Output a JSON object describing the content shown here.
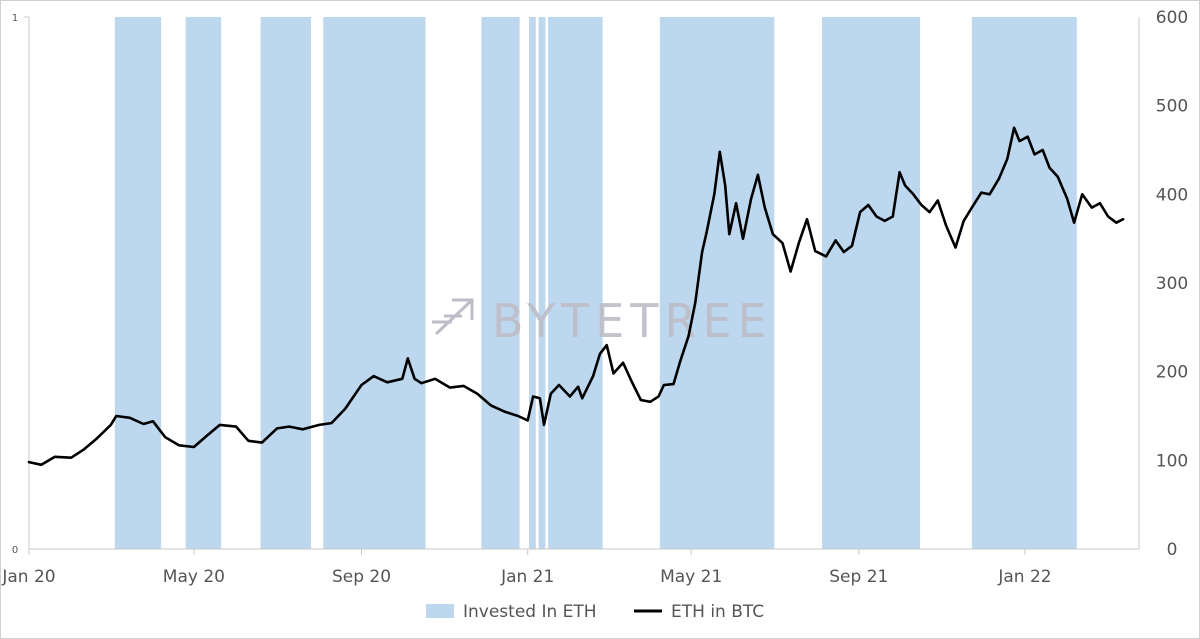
{
  "chart_data": {
    "type": "line",
    "watermark": "BYTETREE",
    "x_axis": {
      "tick_labels": [
        "Jan 20",
        "May 20",
        "Sep 20",
        "Jan 21",
        "May 21",
        "Sep 21",
        "Jan 22"
      ],
      "tick_dates": [
        "2020-01-01",
        "2020-05-01",
        "2020-09-01",
        "2021-01-01",
        "2021-05-01",
        "2021-09-01",
        "2022-01-01"
      ],
      "range": [
        "2020-01-01",
        "2022-03-15"
      ]
    },
    "y_axis_left": {
      "tick_labels": [
        "0",
        "1"
      ],
      "range": [
        0,
        1
      ]
    },
    "y_axis_right": {
      "tick_labels": [
        "0",
        "100",
        "200",
        "300",
        "400",
        "500",
        "600"
      ],
      "range": [
        0,
        600
      ]
    },
    "series": [
      {
        "name": "Invested In ETH",
        "kind": "shaded-periods",
        "axis": "left",
        "color": "#bdd7ee",
        "periods": [
          [
            "2020-03-04",
            "2020-04-07"
          ],
          [
            "2020-04-25",
            "2020-05-21"
          ],
          [
            "2020-06-19",
            "2020-07-26"
          ],
          [
            "2020-08-04",
            "2020-10-18"
          ],
          [
            "2020-11-28",
            "2020-12-26"
          ],
          [
            "2021-01-02",
            "2021-01-07"
          ],
          [
            "2021-01-09",
            "2021-01-14"
          ],
          [
            "2021-01-16",
            "2021-02-25"
          ],
          [
            "2021-04-08",
            "2021-07-01"
          ],
          [
            "2021-08-05",
            "2021-10-16"
          ],
          [
            "2021-11-23",
            "2022-02-08"
          ]
        ]
      },
      {
        "name": "ETH in BTC",
        "kind": "line",
        "axis": "right",
        "color": "#000000",
        "points": [
          [
            "2020-01-01",
            98
          ],
          [
            "2020-01-10",
            95
          ],
          [
            "2020-01-20",
            104
          ],
          [
            "2020-02-01",
            103
          ],
          [
            "2020-02-10",
            112
          ],
          [
            "2020-02-20",
            125
          ],
          [
            "2020-03-01",
            140
          ],
          [
            "2020-03-05",
            150
          ],
          [
            "2020-03-15",
            148
          ],
          [
            "2020-03-25",
            141
          ],
          [
            "2020-04-01",
            144
          ],
          [
            "2020-04-10",
            126
          ],
          [
            "2020-04-20",
            117
          ],
          [
            "2020-05-01",
            115
          ],
          [
            "2020-05-10",
            127
          ],
          [
            "2020-05-20",
            140
          ],
          [
            "2020-06-01",
            138
          ],
          [
            "2020-06-10",
            122
          ],
          [
            "2020-06-20",
            120
          ],
          [
            "2020-07-01",
            136
          ],
          [
            "2020-07-10",
            138
          ],
          [
            "2020-07-20",
            135
          ],
          [
            "2020-08-01",
            140
          ],
          [
            "2020-08-10",
            142
          ],
          [
            "2020-08-20",
            158
          ],
          [
            "2020-09-01",
            185
          ],
          [
            "2020-09-10",
            195
          ],
          [
            "2020-09-20",
            188
          ],
          [
            "2020-10-01",
            192
          ],
          [
            "2020-10-05",
            215
          ],
          [
            "2020-10-10",
            192
          ],
          [
            "2020-10-15",
            187
          ],
          [
            "2020-10-25",
            192
          ],
          [
            "2020-11-05",
            182
          ],
          [
            "2020-11-15",
            184
          ],
          [
            "2020-11-25",
            175
          ],
          [
            "2020-12-05",
            162
          ],
          [
            "2020-12-15",
            155
          ],
          [
            "2020-12-25",
            150
          ],
          [
            "2021-01-01",
            145
          ],
          [
            "2021-01-05",
            172
          ],
          [
            "2021-01-10",
            170
          ],
          [
            "2021-01-13",
            140
          ],
          [
            "2021-01-18",
            175
          ],
          [
            "2021-01-24",
            185
          ],
          [
            "2021-02-01",
            172
          ],
          [
            "2021-02-07",
            183
          ],
          [
            "2021-02-10",
            170
          ],
          [
            "2021-02-18",
            195
          ],
          [
            "2021-02-23",
            220
          ],
          [
            "2021-02-28",
            230
          ],
          [
            "2021-03-05",
            198
          ],
          [
            "2021-03-12",
            210
          ],
          [
            "2021-03-18",
            190
          ],
          [
            "2021-03-25",
            168
          ],
          [
            "2021-04-01",
            166
          ],
          [
            "2021-04-07",
            172
          ],
          [
            "2021-04-11",
            185
          ],
          [
            "2021-04-18",
            186
          ],
          [
            "2021-04-23",
            212
          ],
          [
            "2021-04-29",
            240
          ],
          [
            "2021-05-04",
            278
          ],
          [
            "2021-05-09",
            335
          ],
          [
            "2021-05-12",
            355
          ],
          [
            "2021-05-18",
            400
          ],
          [
            "2021-05-22",
            448
          ],
          [
            "2021-05-26",
            410
          ],
          [
            "2021-05-29",
            355
          ],
          [
            "2021-06-03",
            390
          ],
          [
            "2021-06-08",
            350
          ],
          [
            "2021-06-14",
            395
          ],
          [
            "2021-06-19",
            422
          ],
          [
            "2021-06-24",
            385
          ],
          [
            "2021-06-30",
            355
          ],
          [
            "2021-07-07",
            345
          ],
          [
            "2021-07-13",
            313
          ],
          [
            "2021-07-19",
            345
          ],
          [
            "2021-07-25",
            372
          ],
          [
            "2021-07-31",
            336
          ],
          [
            "2021-08-08",
            330
          ],
          [
            "2021-08-15",
            348
          ],
          [
            "2021-08-21",
            335
          ],
          [
            "2021-08-27",
            342
          ],
          [
            "2021-09-02",
            380
          ],
          [
            "2021-09-08",
            388
          ],
          [
            "2021-09-14",
            375
          ],
          [
            "2021-09-20",
            370
          ],
          [
            "2021-09-26",
            375
          ],
          [
            "2021-10-01",
            425
          ],
          [
            "2021-10-05",
            410
          ],
          [
            "2021-10-11",
            400
          ],
          [
            "2021-10-17",
            388
          ],
          [
            "2021-10-23",
            380
          ],
          [
            "2021-10-29",
            393
          ],
          [
            "2021-11-04",
            365
          ],
          [
            "2021-11-11",
            340
          ],
          [
            "2021-11-17",
            370
          ],
          [
            "2021-11-23",
            385
          ],
          [
            "2021-11-30",
            402
          ],
          [
            "2021-12-06",
            400
          ],
          [
            "2021-12-13",
            418
          ],
          [
            "2021-12-19",
            440
          ],
          [
            "2021-12-24",
            475
          ],
          [
            "2021-12-28",
            460
          ],
          [
            "2022-01-03",
            465
          ],
          [
            "2022-01-08",
            445
          ],
          [
            "2022-01-14",
            450
          ],
          [
            "2022-01-19",
            430
          ],
          [
            "2022-01-25",
            420
          ],
          [
            "2022-02-01",
            395
          ],
          [
            "2022-02-06",
            368
          ],
          [
            "2022-02-12",
            400
          ],
          [
            "2022-02-19",
            385
          ],
          [
            "2022-02-25",
            390
          ],
          [
            "2022-03-03",
            375
          ],
          [
            "2022-03-09",
            368
          ],
          [
            "2022-03-14",
            372
          ]
        ]
      }
    ],
    "legend": {
      "position": "bottom",
      "items": [
        "Invested In ETH",
        "ETH in BTC"
      ]
    }
  }
}
